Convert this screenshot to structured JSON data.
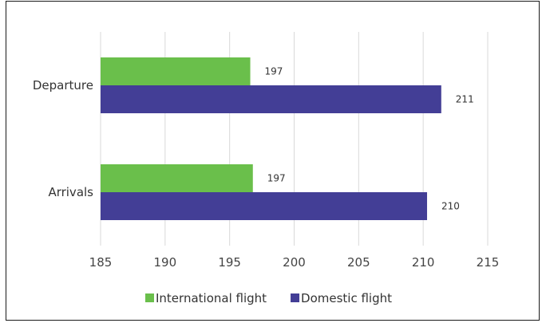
{
  "chart_data": {
    "type": "bar",
    "orientation": "horizontal",
    "categories": [
      "Departure",
      "Arrivals"
    ],
    "series": [
      {
        "name": "International flight",
        "values": [
          196.6,
          196.8
        ],
        "labels": [
          "197",
          "197"
        ],
        "color": "#6abf4b"
      },
      {
        "name": "Domestic flight",
        "values": [
          211.4,
          210.3
        ],
        "labels": [
          "211",
          "210"
        ],
        "color": "#433e96"
      }
    ],
    "xlim": [
      185,
      215
    ],
    "xticks": [
      "185",
      "190",
      "195",
      "200",
      "205",
      "210",
      "215"
    ],
    "title": "",
    "xlabel": "",
    "ylabel": "",
    "grid": true,
    "legend_position": "bottom"
  }
}
